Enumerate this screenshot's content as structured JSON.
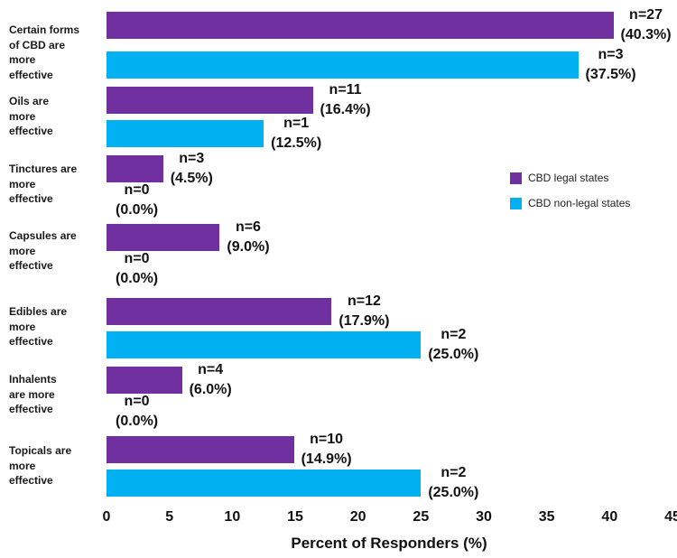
{
  "chart_data": {
    "type": "bar",
    "orientation": "horizontal",
    "title": "",
    "xlabel": "Percent of Responders (%)",
    "ylabel": "",
    "xlim": [
      0,
      45
    ],
    "xticks": [
      "0",
      "5",
      "10",
      "15",
      "20",
      "25",
      "30",
      "35",
      "40",
      "45"
    ],
    "grid": false,
    "axis_lines": false,
    "legend_position": "middle-right",
    "categories": [
      "Certain forms of CBD are more effective",
      "Oils are more effective",
      "Tinctures are more effective",
      "Capsules are more effective",
      "Edibles are more effective",
      "Inhalents are more effective",
      "Topicals are more effective"
    ],
    "category_lines": [
      [
        "Certain forms",
        "of CBD are",
        "more",
        "effective"
      ],
      [
        "Oils are",
        "more",
        "effective"
      ],
      [
        "Tinctures are",
        "more",
        "effective"
      ],
      [
        "Capsules are",
        "more",
        "effective"
      ],
      [
        "Edibles are",
        "more",
        "effective"
      ],
      [
        "Inhalents",
        "are more",
        "effective"
      ],
      [
        "Topicals are",
        "more",
        "effective"
      ]
    ],
    "series": [
      {
        "name": "CBD legal states",
        "color": "#7030A0",
        "values_pct": [
          40.3,
          16.4,
          4.5,
          9.0,
          17.9,
          6.0,
          14.9
        ],
        "n": [
          27,
          11,
          3,
          6,
          12,
          4,
          10
        ],
        "n_labels": [
          "n=27",
          "n=11",
          "n=3",
          "n=6",
          "n=12",
          "n=4",
          "n=10"
        ],
        "pct_labels": [
          "(40.3%)",
          "(16.4%)",
          "(4.5%)",
          "(9.0%)",
          "(17.9%)",
          "(6.0%)",
          "(14.9%)"
        ]
      },
      {
        "name": "CBD non-legal states",
        "color": "#00B0F0",
        "values_pct": [
          37.5,
          12.5,
          0.0,
          0.0,
          25.0,
          0.0,
          25.0
        ],
        "n": [
          3,
          1,
          0,
          0,
          2,
          0,
          2
        ],
        "n_labels": [
          "n=3",
          "n=1",
          "n=0",
          "n=0",
          "n=2",
          "n=0",
          "n=2"
        ],
        "pct_labels": [
          "(37.5%)",
          "(12.5%)",
          "(0.0%)",
          "(0.0%)",
          "(25.0%)",
          "(0.0%)",
          "(25.0%)"
        ]
      }
    ]
  },
  "colors": {
    "legal": "#7030A0",
    "non_legal": "#00B0F0",
    "text": "#111111",
    "background": "#ffffff"
  }
}
